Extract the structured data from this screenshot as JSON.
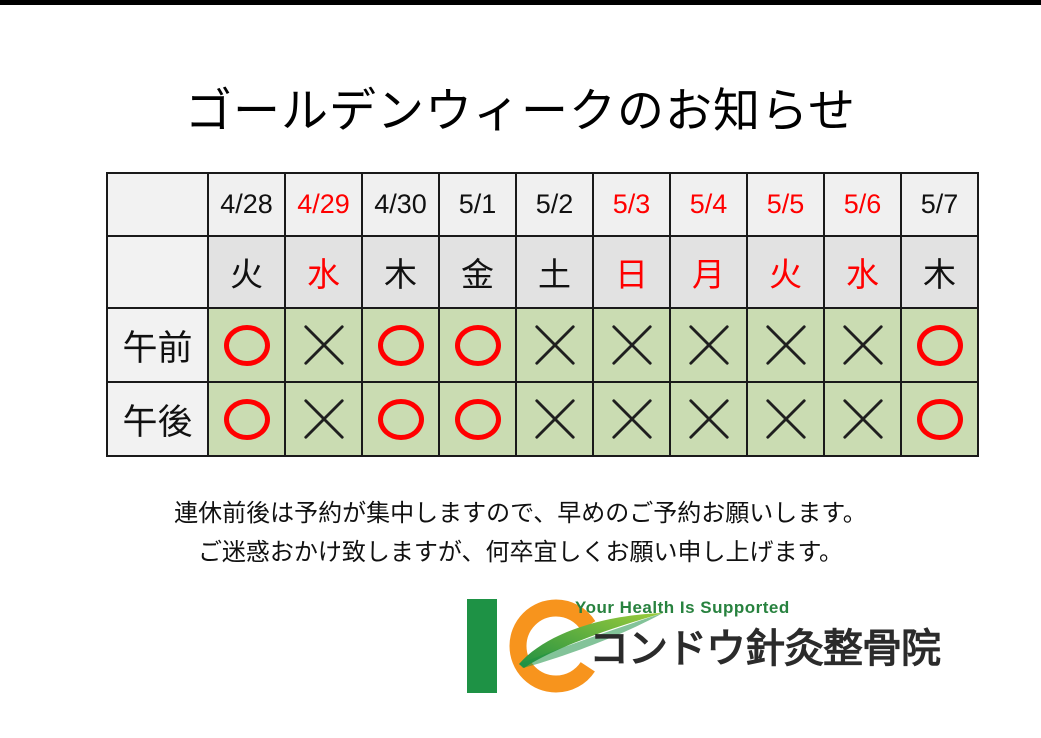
{
  "page": {
    "title": "ゴールデンウィークのお知らせ",
    "notes": [
      "連休前後は予約が集中しますので、早めのご予約お願いします。",
      "ご迷惑おかけ致しますが、何卒宜しくお願い申し上げます。"
    ]
  },
  "colors": {
    "red": "#ff0000",
    "ink": "#111111",
    "date_row_bg": "#f0f0f0",
    "day_row_bg": "#e2e2e2",
    "label_col_bg": "#f2f2f2",
    "open_cell_bg": "#cadcb2",
    "logo_green": "#1e9245",
    "logo_orange": "#f7941d",
    "tagline_green": "#28823f",
    "clinic_name_color": "#2b2b2b"
  },
  "schedule_table": {
    "row_labels": {
      "morning": "午前",
      "afternoon": "午後"
    },
    "marks": {
      "open": "○",
      "closed": "×"
    },
    "columns": [
      {
        "date": "4/28",
        "day": "火",
        "date_color": "black",
        "day_color": "black",
        "morning": "open",
        "afternoon": "open"
      },
      {
        "date": "4/29",
        "day": "水",
        "date_color": "red",
        "day_color": "red",
        "morning": "closed",
        "afternoon": "closed"
      },
      {
        "date": "4/30",
        "day": "木",
        "date_color": "black",
        "day_color": "black",
        "morning": "open",
        "afternoon": "open"
      },
      {
        "date": "5/1",
        "day": "金",
        "date_color": "black",
        "day_color": "black",
        "morning": "open",
        "afternoon": "open"
      },
      {
        "date": "5/2",
        "day": "土",
        "date_color": "black",
        "day_color": "black",
        "morning": "closed",
        "afternoon": "closed"
      },
      {
        "date": "5/3",
        "day": "日",
        "date_color": "red",
        "day_color": "red",
        "morning": "closed",
        "afternoon": "closed"
      },
      {
        "date": "5/4",
        "day": "月",
        "date_color": "red",
        "day_color": "red",
        "morning": "closed",
        "afternoon": "closed"
      },
      {
        "date": "5/5",
        "day": "火",
        "date_color": "red",
        "day_color": "red",
        "morning": "closed",
        "afternoon": "closed"
      },
      {
        "date": "5/6",
        "day": "水",
        "date_color": "red",
        "day_color": "red",
        "morning": "closed",
        "afternoon": "closed"
      },
      {
        "date": "5/7",
        "day": "木",
        "date_color": "black",
        "day_color": "black",
        "morning": "open",
        "afternoon": "open"
      }
    ]
  },
  "logo": {
    "tagline": "Your Health Is Supported",
    "name": "コンドウ針灸整骨院"
  }
}
